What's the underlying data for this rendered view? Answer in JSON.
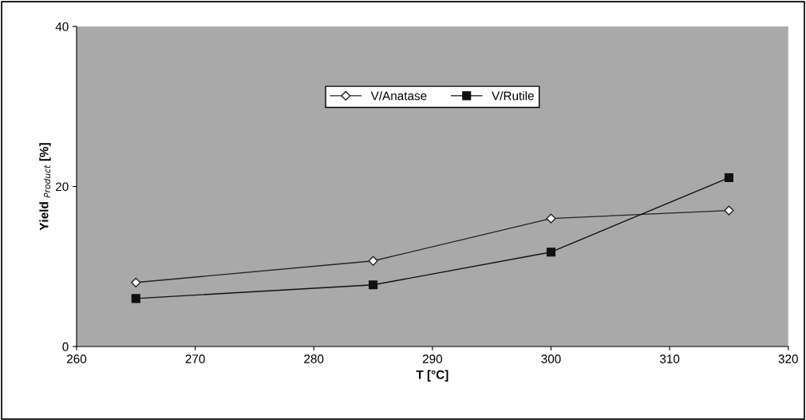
{
  "chart_data": {
    "type": "line",
    "xlabel": "T [°C]",
    "ylabel": "Yield $_{Product}$ [%]",
    "x": [
      265,
      285,
      300,
      315
    ],
    "series": [
      {
        "name": "V/Anatase",
        "color": "#222222",
        "marker": "diamond",
        "values": [
          8,
          10.7,
          16,
          17
        ]
      },
      {
        "name": "V/Rutile",
        "color": "#111111",
        "marker": "square",
        "values": [
          6,
          7.7,
          11.8,
          21.1
        ]
      }
    ],
    "xlim": [
      260,
      320
    ],
    "xticks": [
      260,
      270,
      280,
      290,
      300,
      310,
      320
    ],
    "ylim": [
      0,
      40
    ],
    "yticks": [
      0,
      20,
      40
    ],
    "grid": false,
    "legend": "top",
    "line_style": "solid"
  }
}
